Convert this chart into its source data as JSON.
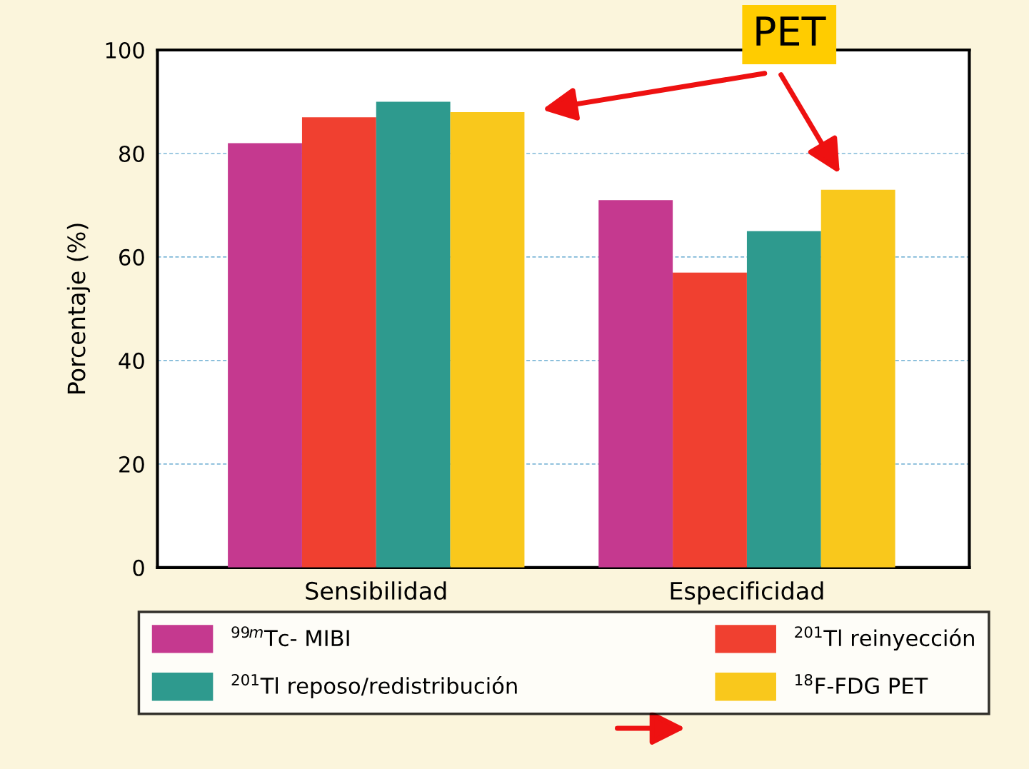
{
  "chart_data": {
    "type": "bar",
    "ylabel": "Porcentaje (%)",
    "categories": [
      "Sensibilidad",
      "Especificidad"
    ],
    "series": [
      {
        "name": "$^{99m}$Tc- MIBI",
        "color": "#c5398f",
        "values": [
          82,
          71
        ]
      },
      {
        "name": "$^{201}$Tl reinyección",
        "color": "#f04030",
        "values": [
          87,
          57
        ]
      },
      {
        "name": "$^{201}$Tl reposo/redistribución",
        "color": "#2e9a8e",
        "values": [
          90,
          65
        ]
      },
      {
        "name": "$^{18}$F-FDG PET",
        "color": "#f9c81c",
        "values": [
          88,
          73
        ]
      }
    ],
    "ylim": [
      0,
      100
    ],
    "yticks": [
      0,
      20,
      40,
      60,
      80,
      100
    ],
    "grid": "y",
    "legend": "bottom",
    "annotations": [
      "PET"
    ]
  }
}
